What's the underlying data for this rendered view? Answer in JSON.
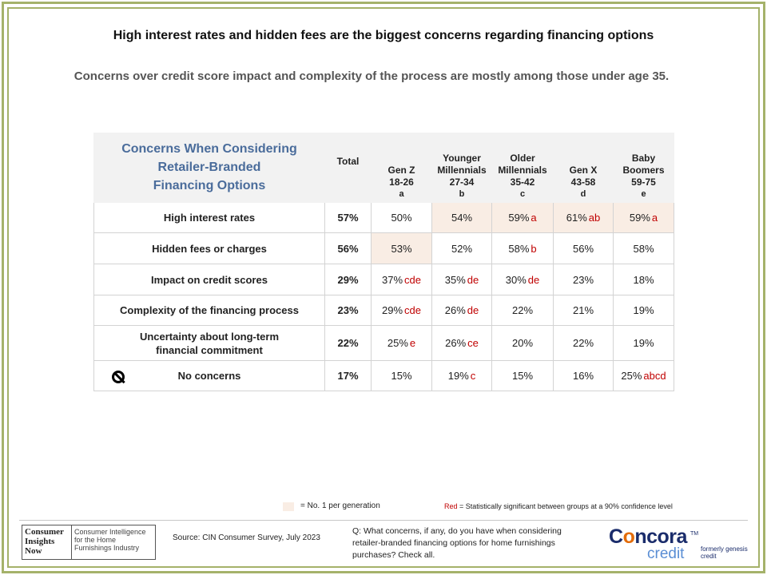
{
  "title": "High interest rates and hidden fees are the biggest concerns regarding financing options",
  "subtitle": "Concerns over credit score impact and complexity of the process are mostly among those under age 35.",
  "table": {
    "header_title_lines": [
      "Concerns When Considering",
      "Retailer-Branded",
      "Financing Options"
    ],
    "total_label": "Total",
    "columns": [
      {
        "lines": [
          "Gen Z",
          "18-26"
        ],
        "letter": "a"
      },
      {
        "lines": [
          "Younger",
          "Millennials",
          "27-34"
        ],
        "letter": "b"
      },
      {
        "lines": [
          "Older",
          "Millennials",
          "35-42"
        ],
        "letter": "c"
      },
      {
        "lines": [
          "Gen X",
          "43-58"
        ],
        "letter": "d"
      },
      {
        "lines": [
          "Baby",
          "Boomers",
          "59-75"
        ],
        "letter": "e"
      }
    ],
    "rows": [
      {
        "label": "High interest rates",
        "total": "57%",
        "cells": [
          {
            "v": "50%",
            "sig": "",
            "hl": false
          },
          {
            "v": "54%",
            "sig": "",
            "hl": true
          },
          {
            "v": "59%",
            "sig": "a",
            "hl": true
          },
          {
            "v": "61%",
            "sig": "ab",
            "hl": true
          },
          {
            "v": "59%",
            "sig": "a",
            "hl": true
          }
        ]
      },
      {
        "label": "Hidden fees or charges",
        "total": "56%",
        "cells": [
          {
            "v": "53%",
            "sig": "",
            "hl": true
          },
          {
            "v": "52%",
            "sig": "",
            "hl": false
          },
          {
            "v": "58%",
            "sig": "b",
            "hl": false
          },
          {
            "v": "56%",
            "sig": "",
            "hl": false
          },
          {
            "v": "58%",
            "sig": "",
            "hl": false
          }
        ]
      },
      {
        "label": "Impact on credit scores",
        "total": "29%",
        "cells": [
          {
            "v": "37%",
            "sig": "cde",
            "hl": false
          },
          {
            "v": "35%",
            "sig": "de",
            "hl": false
          },
          {
            "v": "30%",
            "sig": "de",
            "hl": false
          },
          {
            "v": "23%",
            "sig": "",
            "hl": false
          },
          {
            "v": "18%",
            "sig": "",
            "hl": false
          }
        ]
      },
      {
        "label": "Complexity of the financing process",
        "total": "23%",
        "cells": [
          {
            "v": "29%",
            "sig": "cde",
            "hl": false
          },
          {
            "v": "26%",
            "sig": "de",
            "hl": false
          },
          {
            "v": "22%",
            "sig": "",
            "hl": false
          },
          {
            "v": "21%",
            "sig": "",
            "hl": false
          },
          {
            "v": "19%",
            "sig": "",
            "hl": false
          }
        ]
      },
      {
        "label": "Uncertainty about long-term financial commitment",
        "total": "22%",
        "cells": [
          {
            "v": "25%",
            "sig": "e",
            "hl": false
          },
          {
            "v": "26%",
            "sig": "ce",
            "hl": false
          },
          {
            "v": "20%",
            "sig": "",
            "hl": false
          },
          {
            "v": "22%",
            "sig": "",
            "hl": false
          },
          {
            "v": "19%",
            "sig": "",
            "hl": false
          }
        ]
      },
      {
        "label": "No concerns",
        "total": "17%",
        "icon": "ban-icon",
        "cells": [
          {
            "v": "15%",
            "sig": "",
            "hl": false
          },
          {
            "v": "19%",
            "sig": "c",
            "hl": false
          },
          {
            "v": "15%",
            "sig": "",
            "hl": false
          },
          {
            "v": "16%",
            "sig": "",
            "hl": false
          },
          {
            "v": "25%",
            "sig": "abcd",
            "hl": false
          }
        ]
      }
    ]
  },
  "legend": {
    "highlight_text": "= No. 1 per generation",
    "red_word": "Red",
    "red_text": " = Statistically significant between groups at a 90% confidence level"
  },
  "footer": {
    "logo_left_lines": [
      "Consumer",
      "Insights",
      "Now"
    ],
    "logo_right_text": "Consumer Intelligence for the Home Furnishings Industry",
    "source": "Source: CIN Consumer Survey, July 2023",
    "question": "Q: What concerns, if any, do you have when considering retailer-branded financing options for home furnishings purchases? Check all.",
    "brand_name_pre": "C",
    "brand_name_o": "o",
    "brand_name_post": "ncora",
    "brand_sub": "credit",
    "brand_tm": "TM",
    "formerly": "formerly genesis credit"
  },
  "colors": {
    "frame": "#a5b26a",
    "header_title": "#4a6c9b",
    "highlight": "#f9ede4",
    "significance": "#c00000",
    "brand_navy": "#1a2c6b",
    "brand_orange": "#e36c0a",
    "brand_blue": "#5a8ed4"
  }
}
